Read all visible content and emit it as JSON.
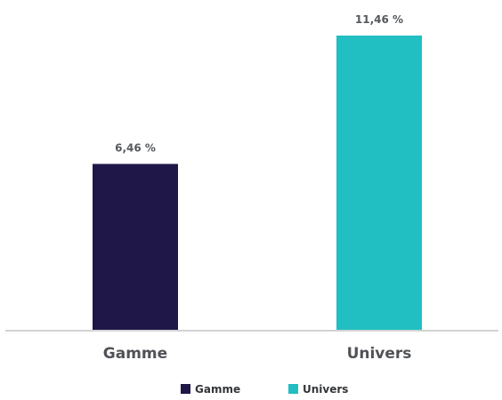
{
  "chart_data": {
    "type": "bar",
    "categories": [
      "Gamme",
      "Univers"
    ],
    "values": [
      6.46,
      11.46
    ],
    "unit": "%",
    "data_labels": [
      "6,46 %",
      "11,46 %"
    ],
    "colors": [
      "#1f1747",
      "#21bec2"
    ],
    "ylim": [
      0,
      11.46
    ],
    "grid": false,
    "legend": {
      "position": "bottom",
      "entries": [
        "Gamme",
        "Univers"
      ]
    }
  }
}
